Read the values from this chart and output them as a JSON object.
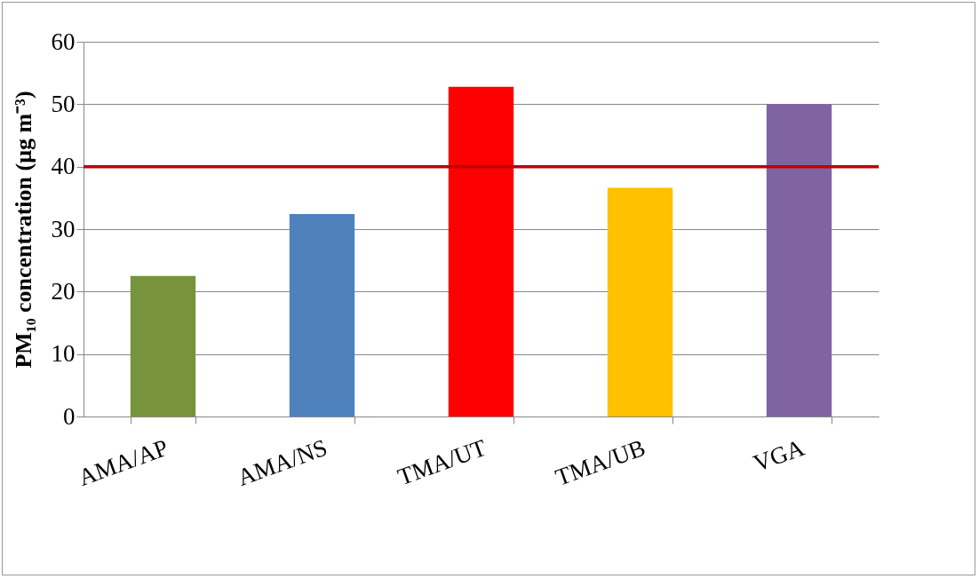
{
  "chart_data": {
    "type": "bar",
    "ylabel": "PM₁₀ concentration (μg m⁻³)",
    "categories": [
      "AMA/AP",
      "AMA/NS",
      "TMA/UT",
      "TMA/UB",
      "VGA"
    ],
    "values": [
      22.5,
      32.4,
      52.8,
      36.6,
      50
    ],
    "colors": [
      "#77933c",
      "#4f81bd",
      "#ff0000",
      "#ffc000",
      "#8064a2"
    ],
    "ylim": [
      0,
      60
    ],
    "yticks": [
      0,
      10,
      20,
      30,
      40,
      50,
      60
    ],
    "grid": "y",
    "ref_lines": [
      {
        "axis": "y",
        "value": 40,
        "color": "#c00000"
      }
    ]
  }
}
